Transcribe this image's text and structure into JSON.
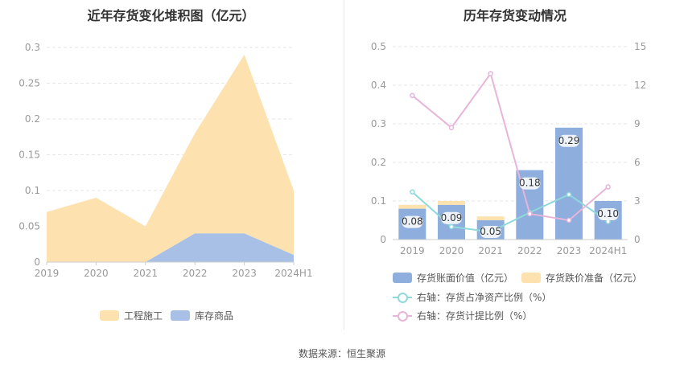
{
  "source_label": "数据来源：恒生聚源",
  "colors": {
    "construction": "#fde2b0",
    "goods": "#a8bfe6",
    "book_value": "#8eaedd",
    "impairment": "#fde2b0",
    "ratio_nav": "#8fd9dc",
    "provision_ratio": "#e7b5d9"
  },
  "chart_data": [
    {
      "type": "area",
      "title": "近年存货变化堆积图（亿元）",
      "categories": [
        "2019",
        "2020",
        "2021",
        "2022",
        "2023",
        "2024H1"
      ],
      "y_ticks": [
        "0",
        "0.05",
        "0.1",
        "0.15",
        "0.2",
        "0.25",
        "0.3"
      ],
      "ylim": [
        0,
        0.3
      ],
      "stacked": true,
      "legend_position": "bottom",
      "series": [
        {
          "name": "工程施工",
          "values": [
            0.07,
            0.09,
            0.05,
            0.14,
            0.25,
            0.09
          ],
          "color": "#fde2b0"
        },
        {
          "name": "库存商品",
          "values": [
            0,
            0,
            0,
            0.04,
            0.04,
            0.01
          ],
          "color": "#a8bfe6"
        }
      ]
    },
    {
      "type": "bar",
      "title": "历年存货变动情况",
      "categories": [
        "2019",
        "2020",
        "2021",
        "2022",
        "2023",
        "2024H1"
      ],
      "y_left_ticks": [
        "0",
        "0.1",
        "0.2",
        "0.3",
        "0.4",
        "0.5"
      ],
      "y_right_ticks": [
        "0",
        "3",
        "6",
        "9",
        "12",
        "15"
      ],
      "ylim_left": [
        0,
        0.5
      ],
      "ylim_right": [
        0,
        15
      ],
      "legend_position": "bottom",
      "bar_series": [
        {
          "name": "存货账面价值（亿元）",
          "values": [
            0.08,
            0.09,
            0.05,
            0.18,
            0.29,
            0.1
          ],
          "labels": [
            "0.08",
            "0.09",
            "0.05",
            "0.18",
            "0.29",
            "0.10"
          ],
          "color": "#8eaedd"
        },
        {
          "name": "存货跌价准备（亿元）",
          "values": [
            0.01,
            0.01,
            0.01,
            0,
            0,
            0
          ],
          "color": "#fde2b0"
        }
      ],
      "line_series": [
        {
          "name": "右轴：存货占净资产比例（%）",
          "values": [
            3.7,
            1.0,
            0.6,
            2.1,
            3.5,
            1.4
          ],
          "color": "#8fd9dc"
        },
        {
          "name": "右轴：存货计提比例（%）",
          "values": [
            11.2,
            8.7,
            12.9,
            2.0,
            1.5,
            4.1
          ],
          "color": "#e7b5d9"
        }
      ]
    }
  ]
}
